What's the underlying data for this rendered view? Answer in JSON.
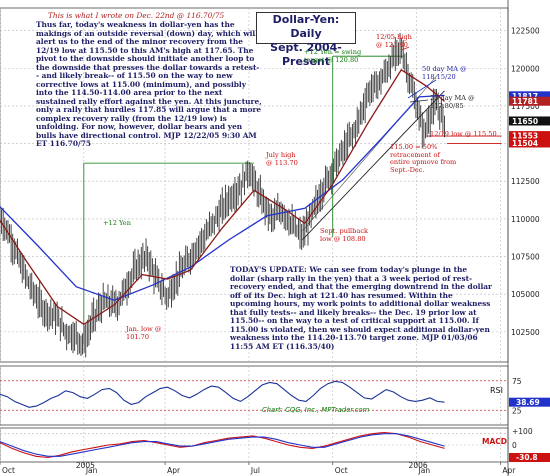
{
  "notes": {
    "header": "This is what I wrote on Dec. 22nd @ 116.70/75",
    "body": "Thus far, today's weakness in dollar-yen has the makings of an outside reversal (down) day, which will alert us to the end of the minor recovery from the 12/19 low at 115.50 to this AM's high at 117.65. The pivot to the downside should initiate another loop to the downside that presses the dollar towards a retest-- and likely break-- of 115.50 on the way to new corrective lows at 115.00 (minimum), and possibly into the 114.50-114.00 area prior to the next sustained rally effort against the yen. At this juncture, only a rally that hurdles 117.85 will argue that a more complex recovery rally (from the 12/19 low) is unfolding. For now, however, dollar bears and yen bulls have directional control. MJP 12/22/05 9:30 AM ET 116.70/75",
    "update": "TODAY'S UPDATE: We can see from today's plunge in the dollar (sharp rally in the yen) that a 3 week period of rest-recovery ended, and that the emerging downtrend in the dollar off of its Dec. high at 121.40 has resumed. Within the upcoming hours, my work points to additional dollar weakness that fully tests-- and likely breaks-- the Dec. 19 prior low at 115.50-- on the way to a test of critical support at 115.00. If 115.00 is violated, then we should expect additional dollar-yen weakness into the 114.20-113.70 target zone. MJP 01/03/06 11:55 AM ET (116.35/40)"
  },
  "chart_data": {
    "title": "Dollar-Yen: Daily Sept. 2004-Present",
    "title_lines": [
      "Dollar-Yen: Daily",
      "Sept. 2004-Present"
    ],
    "type": "line",
    "price_panel": {
      "ylim": [
        100.5,
        124
      ],
      "yticks": [
        102.5,
        105,
        107.5,
        110,
        112.5,
        115,
        117.5,
        120,
        122.5
      ],
      "ytick_labels": [
        "102500",
        "105000",
        "107500",
        "110000",
        "112500",
        "115000",
        "117500",
        "120000",
        "122500"
      ],
      "price_labels": [
        {
          "label": "11817",
          "value": 118.17,
          "color": "#2233cc"
        },
        {
          "label": "11781",
          "value": 117.81,
          "color": "#b22222"
        },
        {
          "label": "11650",
          "value": 116.5,
          "color": "#111111"
        },
        {
          "label": "11553",
          "value": 115.53,
          "color": "#cc1111"
        },
        {
          "label": "11504",
          "value": 115.04,
          "color": "#cc1111"
        }
      ],
      "series": [
        {
          "name": "price",
          "color": "#111111",
          "points": [
            [
              0,
              110.2
            ],
            [
              8,
              108.8
            ],
            [
              16,
              107
            ],
            [
              24,
              105.5
            ],
            [
              34,
              104
            ],
            [
              44,
              103.5
            ],
            [
              52,
              102.5
            ],
            [
              60,
              102.2
            ],
            [
              66,
              101.7
            ],
            [
              74,
              103.5
            ],
            [
              82,
              104.5
            ],
            [
              92,
              104.3
            ],
            [
              100,
              105.6
            ],
            [
              108,
              106.9
            ],
            [
              116,
              107.5
            ],
            [
              124,
              105.8
            ],
            [
              132,
              104.8
            ],
            [
              140,
              106.2
            ],
            [
              148,
              107.2
            ],
            [
              156,
              108.3
            ],
            [
              164,
              109.2
            ],
            [
              172,
              110.3
            ],
            [
              180,
              111.3
            ],
            [
              190,
              112.2
            ],
            [
              196,
              113.3
            ],
            [
              204,
              111.6
            ],
            [
              214,
              110
            ],
            [
              222,
              110.6
            ],
            [
              230,
              109.6
            ],
            [
              238,
              108.8
            ],
            [
              246,
              110.4
            ],
            [
              254,
              112
            ],
            [
              262,
              113.3
            ],
            [
              270,
              114.5
            ],
            [
              280,
              116
            ],
            [
              290,
              118.4
            ],
            [
              300,
              119.2
            ],
            [
              310,
              120.7
            ],
            [
              316,
              121.4
            ],
            [
              322,
              119.4
            ],
            [
              328,
              117.5
            ],
            [
              334,
              115.6
            ],
            [
              338,
              116.8
            ],
            [
              344,
              117.6
            ],
            [
              350,
              116.35
            ]
          ]
        },
        {
          "name": "50 day MA",
          "color": "#2233cc",
          "points": [
            [
              0,
              110.8
            ],
            [
              30,
              108.2
            ],
            [
              60,
              105.5
            ],
            [
              90,
              104.6
            ],
            [
              120,
              105.6
            ],
            [
              150,
              106.8
            ],
            [
              180,
              108.6
            ],
            [
              210,
              110.2
            ],
            [
              240,
              110.7
            ],
            [
              270,
              112.6
            ],
            [
              300,
              115.3
            ],
            [
              330,
              118.1
            ],
            [
              350,
              118.2
            ]
          ]
        },
        {
          "name": "20 day MA",
          "color": "#8b1a1a",
          "points": [
            [
              0,
              109.9
            ],
            [
              20,
              107.3
            ],
            [
              45,
              104.2
            ],
            [
              66,
              103
            ],
            [
              90,
              104.3
            ],
            [
              112,
              106.3
            ],
            [
              132,
              106
            ],
            [
              150,
              106.6
            ],
            [
              175,
              109.4
            ],
            [
              200,
              111.9
            ],
            [
              225,
              110.6
            ],
            [
              240,
              109.7
            ],
            [
              262,
              112.3
            ],
            [
              290,
              116.4
            ],
            [
              316,
              119.9
            ],
            [
              336,
              118.8
            ],
            [
              350,
              117.8
            ]
          ]
        }
      ],
      "annotations": [
        {
          "id": "ann-12yen-swing",
          "text": "+12 Yen = swing target @ 120.80",
          "color": "green"
        },
        {
          "id": "ann-1205-high",
          "text": "12/05 high @ 121.40",
          "color": "red"
        },
        {
          "id": "ann-50ma",
          "text": "50 day MA @ 118.15/20",
          "color": "blue"
        },
        {
          "id": "ann-20ma",
          "text": "20 day MA @ 117.80/85",
          "color": "dark"
        },
        {
          "id": "ann-1219-low",
          "text": "12/19 low @ 115.50",
          "color": "red"
        },
        {
          "id": "ann-retracement",
          "text": "115.00 = 50% retracement of entire upmove from Sept.-Dec.",
          "color": "red"
        },
        {
          "id": "ann-july-high",
          "text": "July high @ 113.70",
          "color": "red"
        },
        {
          "id": "ann-12yen",
          "text": "+12 Yen",
          "color": "green"
        },
        {
          "id": "ann-sept-pullback",
          "text": "Sept. pullback low @ 108.80",
          "color": "red"
        },
        {
          "id": "ann-jan-low",
          "text": "Jan. low @ 101.70",
          "color": "red"
        }
      ]
    },
    "rsi_panel": {
      "label": "RSI",
      "ylim": [
        0,
        100
      ],
      "yticks": [
        75,
        25
      ],
      "value_label": "38.69",
      "credit": "Chart: CQG, Inc., MPTrader.com",
      "values": [
        52,
        48,
        40,
        35,
        30,
        32,
        38,
        45,
        50,
        58,
        55,
        48,
        45,
        52,
        60,
        62,
        55,
        42,
        35,
        38,
        48,
        55,
        62,
        64,
        58,
        50,
        46,
        52,
        60,
        66,
        64,
        55,
        45,
        40,
        48,
        58,
        68,
        72,
        70,
        60,
        50,
        42,
        40,
        50,
        62,
        70,
        74,
        72,
        64,
        55,
        46,
        44,
        52,
        60,
        56,
        48,
        42,
        40,
        42,
        46,
        40,
        38.69
      ]
    },
    "macd_panel": {
      "label": "MACD",
      "ylim": [
        -1.5,
        1.5
      ],
      "yticks": [
        1.0,
        0.0
      ],
      "value_label": "-30.8",
      "macd": [
        0.2,
        -0.3,
        -0.7,
        -1.0,
        -1.1,
        -0.9,
        -0.6,
        -0.4,
        -0.2,
        0.0,
        0.1,
        0.3,
        0.4,
        0.2,
        0.0,
        -0.2,
        -0.1,
        0.2,
        0.4,
        0.6,
        0.7,
        0.8,
        0.6,
        0.3,
        0.0,
        -0.2,
        -0.3,
        -0.1,
        0.2,
        0.5,
        0.8,
        1.0,
        1.1,
        1.0,
        0.7,
        0.3,
        0.0,
        -0.3
      ],
      "signal": [
        0.3,
        -0.1,
        -0.5,
        -0.8,
        -1.0,
        -1.0,
        -0.8,
        -0.6,
        -0.4,
        -0.2,
        0.0,
        0.2,
        0.3,
        0.3,
        0.1,
        -0.1,
        -0.1,
        0.1,
        0.3,
        0.5,
        0.6,
        0.7,
        0.7,
        0.5,
        0.2,
        0.0,
        -0.2,
        -0.2,
        0.1,
        0.4,
        0.7,
        0.9,
        1.0,
        1.0,
        0.8,
        0.5,
        0.2,
        -0.1
      ]
    },
    "xaxis": {
      "tick_labels": [
        "Oct",
        "Jan",
        "Apr",
        "Jul",
        "Oct",
        "Jan",
        "Apr"
      ],
      "tick_index": [
        0,
        66,
        130,
        196,
        262,
        328,
        394
      ],
      "year_labels": [
        "2005",
        "2006"
      ],
      "xlim": [
        0,
        400
      ]
    }
  }
}
